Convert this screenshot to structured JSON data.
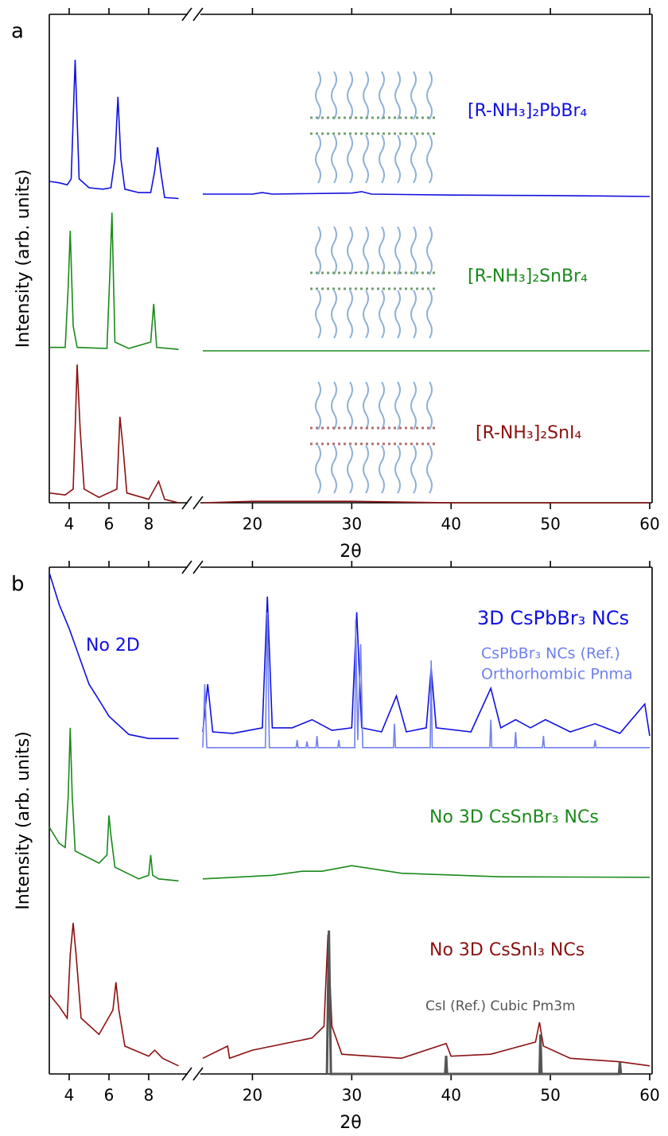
{
  "chart_data": [
    {
      "type": "line",
      "panel": "a",
      "xlabel": "2θ",
      "ylabel": "Intensity (arb. units)",
      "xlim": [
        3,
        60
      ],
      "xbreak": [
        9.8,
        15
      ],
      "ylim": [
        0,
        100
      ],
      "xticks": [
        4,
        6,
        8,
        20,
        30,
        40,
        50,
        60
      ],
      "series": [
        {
          "name": "[R-NH₃]₂PbBr₄",
          "color": "#1010e0",
          "x": [
            3.0,
            3.5,
            3.9,
            4.1,
            4.2,
            4.3,
            4.4,
            4.5,
            5.0,
            5.7,
            6.1,
            6.3,
            6.45,
            6.6,
            6.8,
            7.5,
            8.1,
            8.3,
            8.45,
            8.6,
            8.8,
            9.5,
            null,
            15,
            20,
            21,
            22,
            30,
            31,
            32,
            40,
            50,
            60
          ],
          "values": [
            65.8,
            65.5,
            65.1,
            66.3,
            78.5,
            90.7,
            78.5,
            66.3,
            64.5,
            64.2,
            64.5,
            70.4,
            83.1,
            70.4,
            64.2,
            63.5,
            63.5,
            67.9,
            72.8,
            67.9,
            62.5,
            62.3,
            null,
            63.2,
            63.2,
            63.5,
            63.2,
            63.4,
            63.7,
            63.2,
            63.0,
            62.9,
            62.7
          ]
        },
        {
          "name": "[R-NH₃]₂SnBr₄",
          "color": "#1a8a1a",
          "x": [
            3.0,
            3.8,
            3.95,
            4.05,
            4.2,
            4.4,
            5.9,
            6.05,
            6.15,
            6.3,
            7.0,
            8.1,
            8.25,
            8.4,
            9.5,
            null,
            15,
            60
          ],
          "values": [
            31.8,
            31.8,
            44.3,
            55.7,
            36.2,
            31.8,
            31.6,
            47.6,
            59.4,
            32.9,
            31.6,
            32.9,
            40.7,
            31.8,
            31.4,
            null,
            31.1,
            31.1
          ]
        },
        {
          "name": "[R-NH₃]₂SnI₄",
          "color": "#8b1010",
          "x": [
            3.0,
            3.8,
            4.2,
            4.3,
            4.4,
            4.55,
            4.75,
            5.5,
            6.4,
            6.55,
            6.7,
            6.9,
            8.0,
            8.5,
            8.8,
            9.5,
            null,
            15,
            20,
            30,
            40,
            60
          ],
          "values": [
            2.0,
            1.6,
            2.8,
            15.0,
            28.3,
            15.0,
            2.8,
            1.1,
            2.8,
            17.6,
            11.7,
            2.0,
            0.7,
            4.4,
            0.7,
            0.0,
            null,
            0.0,
            0.3,
            0.3,
            0.0,
            0.0
          ]
        }
      ]
    },
    {
      "type": "line",
      "panel": "b",
      "xlabel": "2θ",
      "ylabel": "Intensity (arb. units)",
      "xlim": [
        3,
        60
      ],
      "xbreak": [
        9.8,
        15
      ],
      "ylim": [
        0,
        100
      ],
      "xticks": [
        4,
        6,
        8,
        20,
        30,
        40,
        50,
        60
      ],
      "annotations": [
        "No 2D",
        "Orthorhombic Pnma"
      ],
      "series": [
        {
          "name": "3D CsPbBr₃ NCs",
          "color": "#1010e0",
          "x": [
            3.0,
            3.5,
            4.0,
            4.5,
            5.0,
            5.5,
            6.0,
            7.0,
            8.0,
            9.5,
            null,
            15,
            15.5,
            16,
            18,
            21,
            21.5,
            22,
            24,
            26,
            28,
            30,
            30.5,
            31,
            33,
            34.5,
            35.5,
            37.5,
            38,
            38.5,
            42,
            44,
            45,
            46.5,
            48,
            49.5,
            52,
            54.5,
            57,
            59.5,
            60
          ],
          "values": [
            98.9,
            92.6,
            87.9,
            82.4,
            76.9,
            73.8,
            70.6,
            67.0,
            66.2,
            66.2,
            null,
            67.5,
            76.9,
            67.5,
            67.2,
            68.3,
            94.2,
            68.3,
            68.3,
            69.9,
            67.8,
            68.3,
            91.1,
            68.3,
            67.5,
            74.6,
            67.5,
            68.3,
            80.1,
            68.3,
            67.5,
            76.1,
            68.3,
            69.9,
            68.3,
            69.9,
            67.5,
            69.1,
            67.2,
            73.0,
            66.7
          ]
        },
        {
          "name": "CsPbBr₃ NCs (Ref.)",
          "color": "#7080ee",
          "x": [
            15,
            15.2,
            15.4,
            21.3,
            21.5,
            21.7,
            24.4,
            24.5,
            24.6,
            25.4,
            25.5,
            25.6,
            26.4,
            26.5,
            26.6,
            28.6,
            28.7,
            28.8,
            30.3,
            30.4,
            30.6,
            30.9,
            31.1,
            34.2,
            34.3,
            34.4,
            37.9,
            38.0,
            38.1,
            43.9,
            44.0,
            44.1,
            46.4,
            46.5,
            46.6,
            49.2,
            49.3,
            49.4,
            54.4,
            54.5,
            54.6,
            60
          ],
          "values": [
            64.4,
            76.9,
            64.4,
            64.4,
            91.1,
            64.4,
            64.4,
            65.9,
            64.4,
            64.4,
            65.6,
            64.4,
            64.4,
            66.7,
            64.4,
            64.4,
            65.9,
            64.4,
            64.4,
            89.5,
            65.9,
            84.8,
            64.4,
            64.4,
            69.1,
            64.4,
            64.4,
            81.6,
            64.4,
            64.4,
            69.9,
            64.4,
            64.4,
            67.5,
            64.4,
            64.4,
            66.7,
            64.4,
            64.4,
            65.9,
            64.4,
            64.4
          ]
        },
        {
          "name": "No 3D CsSnBr₃ NCs",
          "color": "#1a8a1a",
          "x": [
            3.0,
            3.5,
            3.8,
            3.95,
            4.05,
            4.15,
            4.3,
            5.5,
            5.9,
            6.0,
            6.1,
            6.3,
            7.5,
            8.0,
            8.1,
            8.2,
            8.5,
            9.5,
            null,
            15,
            22,
            25,
            27,
            30,
            35,
            45,
            60
          ],
          "values": [
            48.7,
            45.5,
            44.7,
            54.9,
            68.3,
            54.9,
            44.0,
            41.6,
            43.2,
            51.0,
            47.1,
            40.8,
            38.5,
            39.2,
            43.2,
            39.2,
            38.5,
            38.1,
            null,
            38.5,
            39.2,
            40.0,
            40.0,
            41.1,
            39.6,
            38.9,
            38.8
          ]
        },
        {
          "name": "No 3D CsSnI₃ NCs",
          "color": "#8b1010",
          "x": [
            3.0,
            3.5,
            3.9,
            4.05,
            4.2,
            4.35,
            4.6,
            5.5,
            6.2,
            6.35,
            6.5,
            6.8,
            8.0,
            8.3,
            8.7,
            9.5,
            null,
            15,
            17.5,
            17.7,
            20,
            22,
            24,
            26,
            27.2,
            27.6,
            28,
            29,
            35,
            39.5,
            40,
            44,
            48.5,
            48.9,
            49.3,
            52,
            57,
            60
          ],
          "values": [
            15.7,
            13.3,
            11.0,
            23.5,
            29.8,
            23.5,
            11.0,
            7.8,
            12.6,
            18.1,
            12.6,
            5.5,
            3.5,
            4.7,
            3.1,
            1.6,
            null,
            3.1,
            5.5,
            3.1,
            4.7,
            5.5,
            6.3,
            7.1,
            9.4,
            27.5,
            9.4,
            3.9,
            3.1,
            6.0,
            3.5,
            3.9,
            6.3,
            10.2,
            5.5,
            3.1,
            2.4,
            1.6
          ]
        },
        {
          "name": "CsI (Ref.) Cubic Pm3m",
          "color": "#555555",
          "x": [
            27.5,
            27.7,
            27.9,
            39.4,
            39.5,
            39.6,
            48.9,
            49.0,
            49.1,
            56.9,
            57.0,
            57.1
          ],
          "values": [
            0,
            28.3,
            0,
            0,
            3.6,
            0,
            0,
            7.8,
            0,
            0,
            2.4,
            0
          ]
        }
      ]
    }
  ]
}
